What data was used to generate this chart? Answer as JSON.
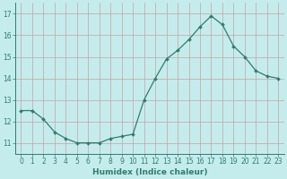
{
  "x": [
    0,
    1,
    2,
    3,
    4,
    5,
    6,
    7,
    8,
    9,
    10,
    11,
    12,
    13,
    14,
    15,
    16,
    17,
    18,
    19,
    20,
    21,
    22,
    23
  ],
  "y": [
    12.5,
    12.5,
    12.1,
    11.5,
    11.2,
    11.0,
    11.0,
    11.0,
    11.2,
    11.3,
    11.4,
    13.0,
    14.0,
    14.9,
    15.3,
    15.8,
    16.4,
    16.9,
    16.5,
    15.5,
    15.0,
    14.35,
    14.1,
    14.0
  ],
  "line_color": "#2e7d6e",
  "marker": "D",
  "marker_size": 2.0,
  "bg_color": "#c5ecec",
  "grid_color": "#b8dcdc",
  "axis_color": "#2e7d6e",
  "tick_color": "#2e7d6e",
  "xlabel": "Humidex (Indice chaleur)",
  "ylim": [
    10.5,
    17.5
  ],
  "xlim": [
    -0.5,
    23.5
  ],
  "yticks": [
    11,
    12,
    13,
    14,
    15,
    16,
    17
  ],
  "xticks": [
    0,
    1,
    2,
    3,
    4,
    5,
    6,
    7,
    8,
    9,
    10,
    11,
    12,
    13,
    14,
    15,
    16,
    17,
    18,
    19,
    20,
    21,
    22,
    23
  ],
  "font_size_label": 6.5,
  "font_size_tick": 5.5,
  "linewidth": 0.9
}
